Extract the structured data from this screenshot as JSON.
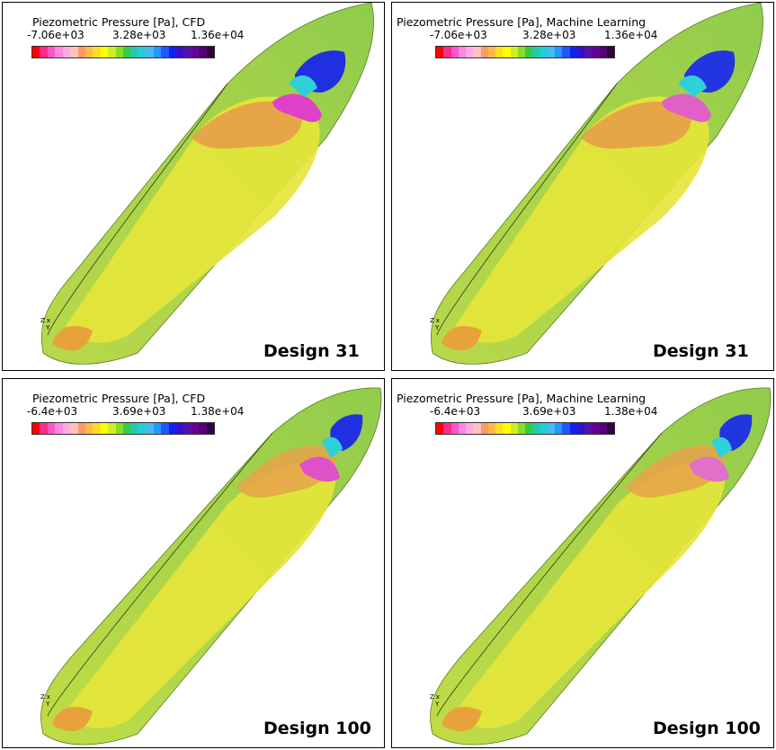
{
  "panels": [
    {
      "legend_title": "Piezometric Pressure [Pa], CFD",
      "tick_min": "-7.06e+03",
      "tick_mid": "3.28e+03",
      "tick_max": "1.36e+04",
      "design_label": "Design 31"
    },
    {
      "legend_title": "Piezometric Pressure [Pa], Machine Learning",
      "tick_min": "-7.06e+03",
      "tick_mid": "3.28e+03",
      "tick_max": "1.36e+04",
      "design_label": "Design 31"
    },
    {
      "legend_title": "Piezometric Pressure [Pa], CFD",
      "tick_min": "-6.4e+03",
      "tick_mid": "3.69e+03",
      "tick_max": "1.38e+04",
      "design_label": "Design 100"
    },
    {
      "legend_title": "Piezometric Pressure [Pa], Machine Learning",
      "tick_min": "-6.4e+03",
      "tick_mid": "3.69e+03",
      "tick_max": "1.38e+04",
      "design_label": "Design 100"
    }
  ],
  "axis_labels": {
    "x": "x",
    "y": "Y",
    "z": "Z"
  },
  "colorbar_colors": [
    "#ff0000",
    "#ff2a8a",
    "#ff55c8",
    "#ff88e0",
    "#ffa8e8",
    "#ffc0c0",
    "#ff9966",
    "#ffbb44",
    "#ffdd22",
    "#ffff00",
    "#ccee22",
    "#88dd22",
    "#33cc44",
    "#22ccaa",
    "#22ccdd",
    "#44bbee",
    "#2299ff",
    "#2255ff",
    "#1122ee",
    "#3311cc",
    "#5511aa",
    "#660099",
    "#550077",
    "#330044"
  ]
}
